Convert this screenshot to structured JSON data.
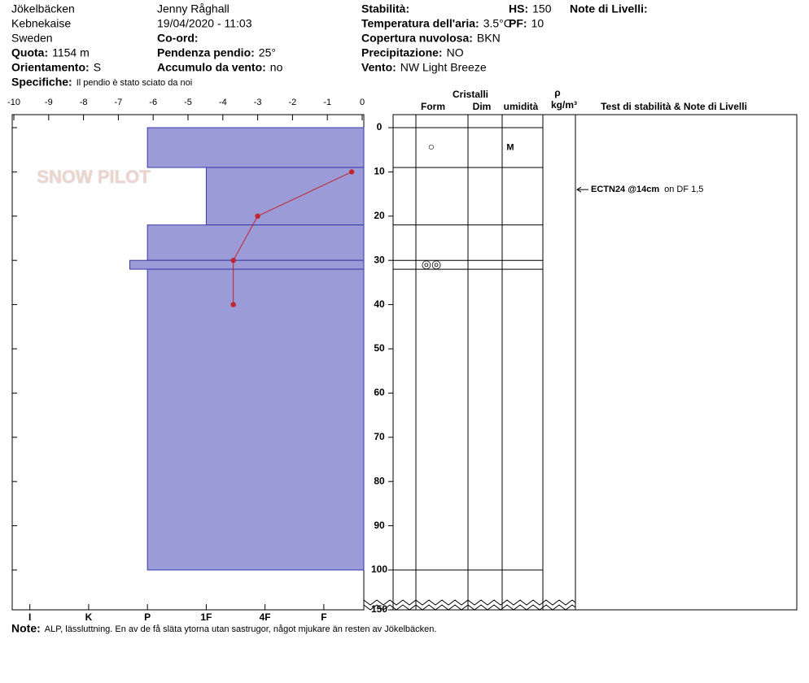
{
  "header": {
    "location": "Jökelbäcken",
    "region": "Kebnekaise",
    "country": "Sweden",
    "elevation_label": "Quota:",
    "elevation": "1154 m",
    "aspect_label": "Orientamento:",
    "aspect": "S",
    "specifics_label": "Specifiche:",
    "specifics": "Il pendio è stato sciato da noi",
    "observer": "Jenny Råghall",
    "datetime": "19/04/2020 - 11:03",
    "coord_label": "Co-ord:",
    "slope_label": "Pendenza pendio:",
    "slope": "25°",
    "wind_loading_label": "Accumulo da vento:",
    "wind_loading": "no",
    "stability_label": "Stabilità:",
    "air_temp_label": "Temperatura dell'aria:",
    "air_temp": "3.5°C",
    "cloud_label": "Copertura nuvolosa:",
    "cloud": "BKN",
    "precip_label": "Precipitazione:",
    "precip": "NO",
    "wind_label": "Vento:",
    "wind": "NW Light Breeze",
    "hs_label": "HS:",
    "hs": 150,
    "pf_label": "PF:",
    "pf": 10,
    "layer_notes_label": "Note di Livelli:"
  },
  "logo_text": "SNOW PILOT",
  "chart_data": {
    "type": "snow-profile",
    "xlim": [
      -10,
      0
    ],
    "xticks": [
      -10,
      -9,
      -8,
      -7,
      -6,
      -5,
      -4,
      -3,
      -2,
      -1,
      0
    ],
    "ylim": [
      0,
      150
    ],
    "yticks": [
      0,
      10,
      20,
      30,
      40,
      50,
      60,
      70,
      80,
      90,
      100,
      150
    ],
    "hardness_lim": [
      0.7,
      6.68
    ],
    "hardness_ticks": [
      {
        "value": 1,
        "label": "I"
      },
      {
        "value": 2,
        "label": "K"
      },
      {
        "value": 3,
        "label": "P"
      },
      {
        "value": 4,
        "label": "1F"
      },
      {
        "value": 5,
        "label": "4F"
      },
      {
        "value": 6,
        "label": "F"
      }
    ],
    "temperature": {
      "color": "#c0262b",
      "depth": [
        10,
        20,
        30,
        40
      ],
      "values": [
        -0.3,
        -3,
        -3.7,
        -3.7
      ]
    },
    "layers": {
      "color": "#9b9bd8",
      "top": [
        0,
        9,
        22,
        30,
        32
      ],
      "bottom": [
        9,
        22,
        30,
        32,
        100
      ],
      "hardness": [
        3,
        4,
        3,
        2.7,
        3
      ],
      "form": [
        "○",
        null,
        null,
        "◎◎",
        null
      ],
      "moisture": [
        "M",
        null,
        null,
        null,
        null
      ]
    }
  },
  "table": {
    "crystals": "Cristalli",
    "form": "Form",
    "dim": "Dim",
    "moisture": "umidità",
    "density_symbol": "ρ",
    "density_unit": "kg/m³",
    "tests": "Test di stabilità & Note di Livelli"
  },
  "test": {
    "result": "ECTN24 @14cm",
    "detail": "on DF 1,5",
    "depth": 14
  },
  "note_label": "Note:",
  "note": "ALP, lässluttning. En av de få släta ytorna utan sastrugor, något mjukare än resten av Jökelbäcken."
}
